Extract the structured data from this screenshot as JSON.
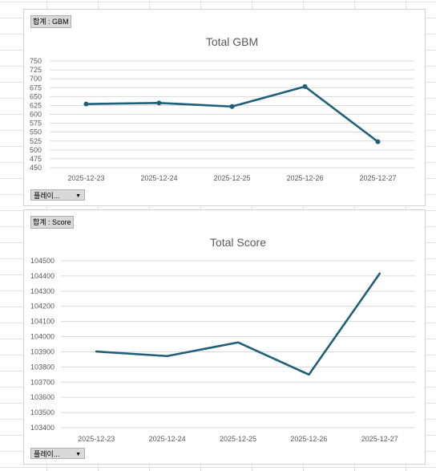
{
  "pivot": {
    "chart1_tag": "합계 : GBM",
    "chart2_tag": "합계 : Score",
    "filter_label": "플레이...",
    "filter_arrow": "▼"
  },
  "colors": {
    "line": "#1f5f7a",
    "grid": "#d9d9d9"
  },
  "chart_data": [
    {
      "type": "line",
      "title": "Total GBM",
      "markers": true,
      "categories": [
        "2025-12-23",
        "2025-12-24",
        "2025-12-25",
        "2025-12-26",
        "2025-12-27"
      ],
      "series": [
        {
          "values": [
            629,
            632,
            622,
            678,
            523
          ]
        }
      ],
      "ylim": [
        450,
        750
      ],
      "yticks": [
        750,
        725,
        700,
        675,
        650,
        625,
        600,
        575,
        550,
        525,
        500,
        475,
        450
      ],
      "grid": true
    },
    {
      "type": "line",
      "title": "Total Score",
      "markers": false,
      "categories": [
        "2025-12-23",
        "2025-12-24",
        "2025-12-25",
        "2025-12-26",
        "2025-12-27"
      ],
      "series": [
        {
          "values": [
            103902,
            103872,
            103962,
            103750,
            104416
          ]
        }
      ],
      "ylim": [
        103400,
        104500
      ],
      "yticks": [
        104500,
        104400,
        104300,
        104200,
        104100,
        104000,
        103900,
        103800,
        103700,
        103600,
        103500,
        103400
      ],
      "grid": true
    }
  ]
}
